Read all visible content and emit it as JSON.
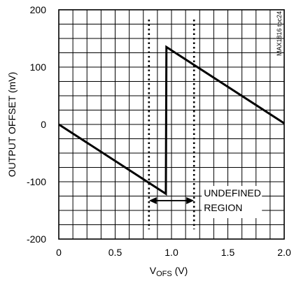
{
  "chart_data": {
    "type": "line",
    "title": "",
    "xlabel": {
      "main": "V",
      "sub": "OFS",
      "unit": " (V)"
    },
    "ylabel": "OUTPUT OFFSET (mV)",
    "xlim": [
      0,
      2
    ],
    "ylim": [
      -200,
      200
    ],
    "x_ticks": [
      0,
      0.5,
      1.0,
      1.5,
      2.0
    ],
    "x_tick_labels": [
      "0",
      "0.5",
      "1.0",
      "1.5",
      "2.0"
    ],
    "y_ticks": [
      -200,
      -100,
      0,
      100,
      200
    ],
    "y_tick_labels": [
      "-200",
      "-100",
      "0",
      "100",
      "200"
    ],
    "x_minor_step": 0.125,
    "y_minor_step": 25,
    "grid": true,
    "series": [
      {
        "points": [
          {
            "x": 0.0,
            "y": 0
          },
          {
            "x": 0.95,
            "y": -121
          },
          {
            "x": 0.955,
            "y": 135
          },
          {
            "x": 2.0,
            "y": 2
          }
        ]
      }
    ],
    "reference_lines": [
      {
        "x": 0.8,
        "style": "dotted"
      },
      {
        "x": 1.2,
        "style": "dotted"
      }
    ],
    "annotation": {
      "lines": [
        "UNDEFINED",
        "REGION"
      ],
      "arrow_from": 0.8,
      "arrow_to": 1.2,
      "arrow_y": -133
    },
    "chart_id": "MAX1816 toc24"
  }
}
